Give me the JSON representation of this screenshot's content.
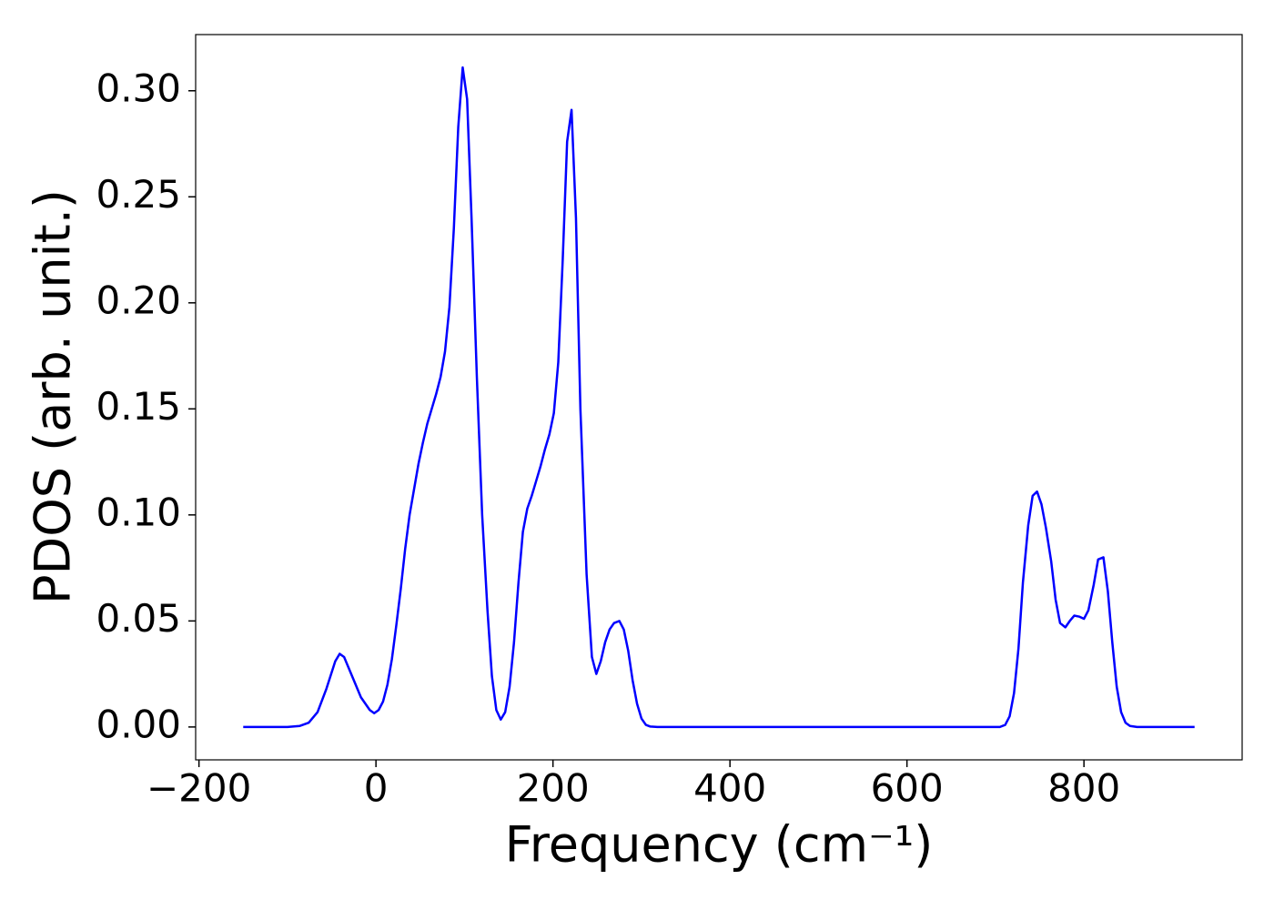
{
  "chart_data": {
    "type": "line",
    "xlabel": "Frequency (cm⁻¹)",
    "ylabel": "PDOS (arb. unit.)",
    "color": "#0000ff",
    "x": [
      -150,
      -100,
      -86,
      -76,
      -66,
      -56,
      -46,
      -41,
      -36,
      -26,
      -17,
      -7,
      -2,
      3,
      8,
      13,
      18,
      23,
      28,
      33,
      38,
      43,
      48,
      53,
      58,
      63,
      68,
      73,
      78,
      83,
      88,
      93,
      98,
      103,
      108,
      114,
      120,
      126,
      131,
      136,
      141,
      146,
      151,
      156,
      161,
      166,
      171,
      176,
      181,
      186,
      191,
      196,
      201,
      206,
      211,
      216,
      221,
      226,
      231,
      238,
      244,
      249,
      254,
      259,
      264,
      269,
      275,
      280,
      285,
      290,
      295,
      300,
      305,
      310,
      318,
      705,
      711,
      716,
      721,
      726,
      731,
      737,
      742,
      747,
      752,
      757,
      763,
      768,
      773,
      779,
      784,
      789,
      795,
      800,
      805,
      811,
      816,
      822,
      827,
      832,
      837,
      842,
      847,
      852,
      860,
      925
    ],
    "values": [
      0,
      0,
      0.0005,
      0.002,
      0.007,
      0.018,
      0.031,
      0.0345,
      0.033,
      0.023,
      0.014,
      0.008,
      0.0065,
      0.008,
      0.012,
      0.02,
      0.032,
      0.048,
      0.065,
      0.084,
      0.1,
      0.112,
      0.124,
      0.134,
      0.143,
      0.15,
      0.157,
      0.165,
      0.177,
      0.198,
      0.235,
      0.283,
      0.311,
      0.296,
      0.24,
      0.165,
      0.1,
      0.055,
      0.024,
      0.008,
      0.0035,
      0.007,
      0.019,
      0.04,
      0.068,
      0.092,
      0.103,
      0.109,
      0.116,
      0.123,
      0.131,
      0.138,
      0.148,
      0.172,
      0.22,
      0.276,
      0.291,
      0.24,
      0.15,
      0.072,
      0.033,
      0.025,
      0.031,
      0.04,
      0.046,
      0.049,
      0.05,
      0.046,
      0.036,
      0.022,
      0.011,
      0.004,
      0.001,
      0.0002,
      0,
      0,
      0.001,
      0.005,
      0.016,
      0.037,
      0.068,
      0.095,
      0.109,
      0.111,
      0.105,
      0.094,
      0.078,
      0.06,
      0.049,
      0.047,
      0.05,
      0.0525,
      0.052,
      0.051,
      0.055,
      0.067,
      0.079,
      0.08,
      0.064,
      0.04,
      0.019,
      0.007,
      0.002,
      0.0005,
      0,
      0
    ],
    "xlim": [
      -203.75,
      978.75
    ],
    "xticks": [
      {
        "value": -200,
        "label": "−200"
      },
      0,
      200,
      400,
      600,
      800
    ],
    "ylim": [
      -0.0155,
      0.3265
    ],
    "yticks": [
      {
        "value": 0,
        "label": "0.00"
      },
      {
        "value": 0.05,
        "label": "0.05"
      },
      {
        "value": 0.1,
        "label": "0.10"
      },
      {
        "value": 0.15,
        "label": "0.15"
      },
      {
        "value": 0.2,
        "label": "0.20"
      },
      {
        "value": 0.25,
        "label": "0.25"
      },
      {
        "value": 0.3,
        "label": "0.30"
      }
    ]
  }
}
